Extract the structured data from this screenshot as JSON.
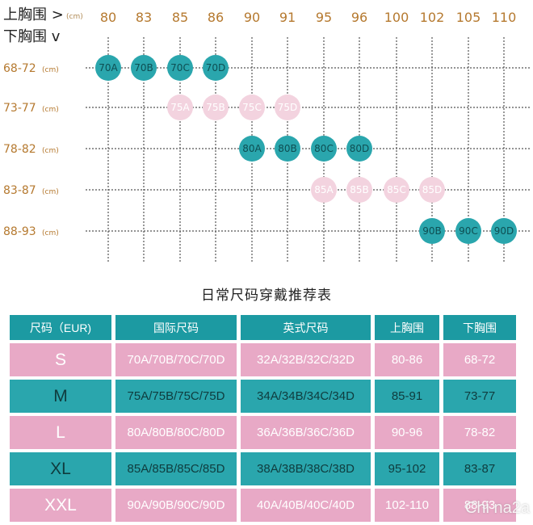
{
  "chart_data": {
    "type": "table",
    "corner": {
      "top_label": "上胸围 >",
      "top_unit": "(cm)",
      "bottom_label": "下胸围 v"
    },
    "columns": [
      "80",
      "83",
      "85",
      "86",
      "90",
      "91",
      "95",
      "96",
      "100",
      "102",
      "105",
      "110"
    ],
    "rows": [
      {
        "label": "68-72",
        "unit": "(cm)"
      },
      {
        "label": "73-77",
        "unit": "(cm)"
      },
      {
        "label": "78-82",
        "unit": "(cm)"
      },
      {
        "label": "83-87",
        "unit": "(cm)"
      },
      {
        "label": "88-93",
        "unit": "(cm)"
      }
    ],
    "cells": [
      {
        "row": 0,
        "col": 0,
        "label": "70A",
        "color": "teal"
      },
      {
        "row": 0,
        "col": 1,
        "label": "70B",
        "color": "teal"
      },
      {
        "row": 0,
        "col": 2,
        "label": "70C",
        "color": "teal"
      },
      {
        "row": 0,
        "col": 3,
        "label": "70D",
        "color": "teal"
      },
      {
        "row": 1,
        "col": 2,
        "label": "75A",
        "color": "pink"
      },
      {
        "row": 1,
        "col": 3,
        "label": "75B",
        "color": "pink"
      },
      {
        "row": 1,
        "col": 4,
        "label": "75C",
        "color": "pink"
      },
      {
        "row": 1,
        "col": 5,
        "label": "75D",
        "color": "pink"
      },
      {
        "row": 2,
        "col": 4,
        "label": "80A",
        "color": "teal"
      },
      {
        "row": 2,
        "col": 5,
        "label": "80B",
        "color": "teal"
      },
      {
        "row": 2,
        "col": 6,
        "label": "80C",
        "color": "teal"
      },
      {
        "row": 2,
        "col": 7,
        "label": "80D",
        "color": "teal"
      },
      {
        "row": 3,
        "col": 6,
        "label": "85A",
        "color": "pink"
      },
      {
        "row": 3,
        "col": 7,
        "label": "85B",
        "color": "pink"
      },
      {
        "row": 3,
        "col": 8,
        "label": "85C",
        "color": "pink"
      },
      {
        "row": 3,
        "col": 9,
        "label": "85D",
        "color": "pink"
      },
      {
        "row": 4,
        "col": 9,
        "label": "90B",
        "color": "teal"
      },
      {
        "row": 4,
        "col": 10,
        "label": "90C",
        "color": "teal"
      },
      {
        "row": 4,
        "col": 11,
        "label": "90D",
        "color": "teal"
      }
    ],
    "colors": {
      "teal": "#2aa6ad",
      "pink": "#f3d3df",
      "label": "#b5792f",
      "grid": "#555555"
    }
  },
  "table": {
    "title": "日常尺码穿戴推荐表",
    "headers": [
      "尺码（EUR)",
      "国际尺码",
      "英式尺码",
      "上胸围",
      "下胸围"
    ],
    "rows": [
      {
        "style": "pink",
        "cells": [
          "S",
          "70A/70B/70C/70D",
          "32A/32B/32C/32D",
          "80-86",
          "68-72"
        ]
      },
      {
        "style": "teal",
        "cells": [
          "M",
          "75A/75B/75C/75D",
          "34A/34B/34C/34D",
          "85-91",
          "73-77"
        ]
      },
      {
        "style": "pink",
        "cells": [
          "L",
          "80A/80B/80C/80D",
          "36A/36B/36C/36D",
          "90-96",
          "78-82"
        ]
      },
      {
        "style": "teal",
        "cells": [
          "XL",
          "85A/85B/85C/85D",
          "38A/38B/38C/38D",
          "95-102",
          "83-87"
        ]
      },
      {
        "style": "pink",
        "cells": [
          "XXL",
          "90A/90B/90C/90D",
          "40A/40B/40C/40D",
          "102-110",
          "88-93"
        ]
      }
    ],
    "colors": {
      "header": "#1c9aa2",
      "pink": "#e8a9c6",
      "teal": "#2aa6ad"
    }
  },
  "watermark": "Chi na2a"
}
